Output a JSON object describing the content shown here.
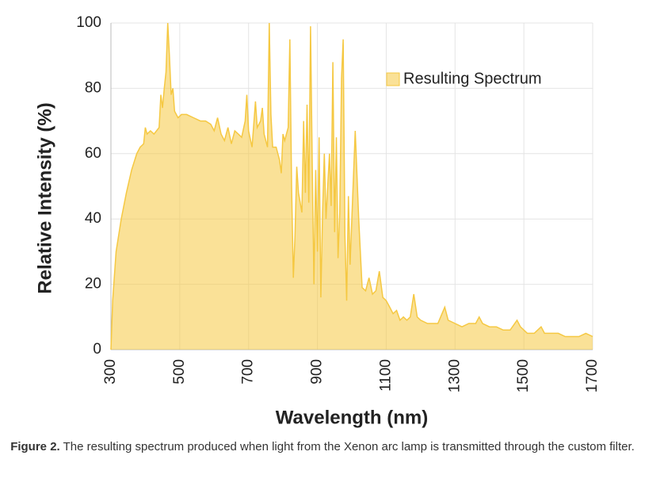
{
  "chart_data": {
    "type": "area",
    "x_label": "Wavelength (nm)",
    "y_label": "Relative Intensity (%)",
    "xlim": [
      300,
      1700
    ],
    "xticks": [
      300,
      500,
      700,
      900,
      1100,
      1300,
      1500,
      1700
    ],
    "ylim": [
      0,
      100
    ],
    "yticks": [
      0,
      20,
      40,
      60,
      80,
      100
    ],
    "grid": true,
    "legend": "upper right",
    "series": [
      {
        "name": "Resulting Spectrum",
        "color": "#f5c842",
        "x": [
          300,
          305,
          315,
          330,
          345,
          360,
          375,
          385,
          395,
          400,
          405,
          415,
          425,
          440,
          445,
          450,
          455,
          460,
          465,
          470,
          475,
          480,
          485,
          495,
          505,
          520,
          540,
          560,
          575,
          590,
          600,
          610,
          620,
          630,
          640,
          650,
          660,
          670,
          680,
          690,
          695,
          700,
          710,
          720,
          725,
          735,
          740,
          745,
          755,
          760,
          765,
          770,
          780,
          790,
          795,
          800,
          805,
          815,
          820,
          825,
          830,
          835,
          840,
          845,
          855,
          860,
          865,
          870,
          875,
          880,
          885,
          890,
          895,
          900,
          905,
          910,
          915,
          920,
          925,
          935,
          940,
          945,
          950,
          955,
          960,
          965,
          970,
          975,
          980,
          985,
          990,
          995,
          1010,
          1020,
          1030,
          1040,
          1050,
          1060,
          1070,
          1080,
          1090,
          1100,
          1110,
          1120,
          1130,
          1140,
          1150,
          1160,
          1170,
          1180,
          1190,
          1200,
          1220,
          1240,
          1250,
          1270,
          1280,
          1300,
          1320,
          1340,
          1360,
          1370,
          1380,
          1400,
          1420,
          1440,
          1460,
          1480,
          1490,
          1510,
          1530,
          1550,
          1560,
          1580,
          1600,
          1620,
          1640,
          1660,
          1680,
          1700
        ],
        "values": [
          0,
          15,
          30,
          40,
          48,
          55,
          60,
          62,
          63,
          68,
          66,
          67,
          66,
          68,
          78,
          74,
          80,
          85,
          100,
          90,
          78,
          80,
          73,
          71,
          72,
          72,
          71,
          70,
          70,
          69,
          67,
          71,
          66,
          64,
          68,
          63,
          67,
          66,
          65,
          70,
          78,
          67,
          62,
          76,
          68,
          70,
          74,
          66,
          62,
          100,
          72,
          62,
          62,
          58,
          54,
          66,
          64,
          68,
          95,
          50,
          22,
          35,
          56,
          48,
          42,
          70,
          48,
          75,
          45,
          99,
          56,
          20,
          55,
          30,
          65,
          16,
          42,
          60,
          40,
          60,
          44,
          88,
          36,
          65,
          28,
          42,
          83,
          95,
          35,
          15,
          47,
          26,
          67,
          40,
          19,
          18,
          22,
          17,
          18,
          24,
          16,
          15,
          13,
          11,
          12,
          9,
          10,
          9,
          10,
          17,
          10,
          9,
          8,
          8,
          8,
          13,
          9,
          8,
          7,
          8,
          8,
          10,
          8,
          7,
          7,
          6,
          6,
          9,
          7,
          5,
          5,
          7,
          5,
          5,
          5,
          4,
          4,
          4,
          5,
          4
        ]
      }
    ]
  },
  "caption": {
    "label": "Figure 2.",
    "text": "The resulting spectrum produced when light from the Xenon arc lamp is transmitted through the custom filter."
  }
}
